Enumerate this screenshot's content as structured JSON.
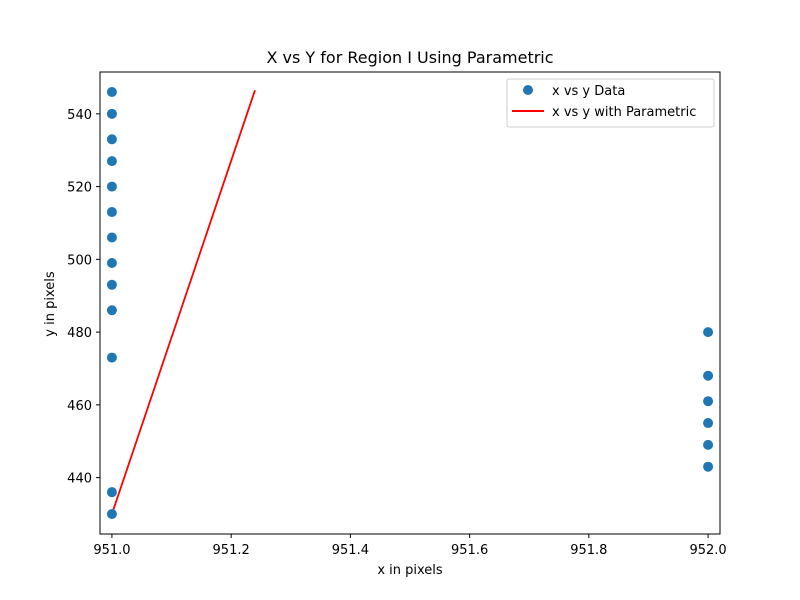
{
  "chart_data": {
    "type": "scatter",
    "title": "X vs Y for Region I Using Parametric",
    "xlabel": "x in pixels",
    "ylabel": "y in pixels",
    "xlim": [
      950.98,
      952.02
    ],
    "ylim": [
      424.5,
      551.5
    ],
    "xticks": [
      951.0,
      951.2,
      951.4,
      951.6,
      951.8,
      952.0
    ],
    "xtick_labels": [
      "951.0",
      "951.2",
      "951.4",
      "951.6",
      "951.8",
      "952.0"
    ],
    "yticks": [
      440,
      460,
      480,
      500,
      520,
      540
    ],
    "ytick_labels": [
      "440",
      "460",
      "480",
      "500",
      "520",
      "540"
    ],
    "grid": false,
    "legend_position": "top-right",
    "colors": {
      "scatter": "#1f77b4",
      "line": "#ff0000"
    },
    "series": [
      {
        "name": "x vs y Data",
        "kind": "scatter",
        "x": [
          951,
          951,
          951,
          951,
          951,
          951,
          951,
          951,
          951,
          951,
          951,
          951,
          951,
          952,
          952,
          952,
          952,
          952,
          952
        ],
        "y": [
          546,
          540,
          533,
          527,
          520,
          513,
          506,
          499,
          493,
          486,
          473,
          436,
          430,
          480,
          468,
          461,
          455,
          449,
          443
        ]
      },
      {
        "name": "x vs y with Parametric",
        "kind": "line",
        "x": [
          951.0,
          951.24
        ],
        "y": [
          430,
          546.5
        ]
      }
    ]
  }
}
